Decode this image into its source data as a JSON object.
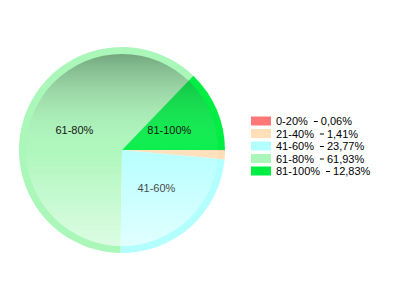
{
  "chart_data": {
    "type": "pie",
    "categories": [
      "0-20%",
      "21-40%",
      "41-60%",
      "61-80%",
      "81-100%"
    ],
    "values": [
      0.06,
      1.41,
      23.77,
      61.93,
      12.83
    ],
    "value_labels": [
      "0,06%",
      "1,41%",
      "23,77%",
      "61,93%",
      "12,83%"
    ],
    "colors": [
      "#ff7777",
      "#ffdfb8",
      "#b3ffff",
      "#aaf7b9",
      "#00ee44"
    ],
    "legend": "right"
  }
}
